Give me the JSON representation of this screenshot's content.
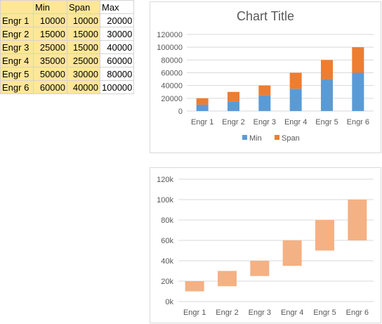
{
  "table": {
    "headers": [
      "",
      "Min",
      "Span",
      "Max"
    ],
    "rows": [
      {
        "label": "Engr 1",
        "min": "10000",
        "span": "10000",
        "max": "20000"
      },
      {
        "label": "Engr 2",
        "min": "15000",
        "span": "15000",
        "max": "30000"
      },
      {
        "label": "Engr 3",
        "min": "25000",
        "span": "15000",
        "max": "40000"
      },
      {
        "label": "Engr 4",
        "min": "35000",
        "span": "25000",
        "max": "60000"
      },
      {
        "label": "Engr 5",
        "min": "50000",
        "span": "30000",
        "max": "80000"
      },
      {
        "label": "Engr 6",
        "min": "60000",
        "span": "40000",
        "max": "100000"
      }
    ],
    "highlight_color": "#ffe699"
  },
  "chart_data": [
    {
      "type": "bar",
      "stacked": true,
      "title": "Chart Title",
      "categories": [
        "Engr 1",
        "Engr 2",
        "Engr 3",
        "Engr 4",
        "Engr 5",
        "Engr 6"
      ],
      "series": [
        {
          "name": "Min",
          "values": [
            10000,
            15000,
            25000,
            35000,
            50000,
            60000
          ],
          "color": "#5b9bd5"
        },
        {
          "name": "Span",
          "values": [
            10000,
            15000,
            15000,
            25000,
            30000,
            40000
          ],
          "color": "#ed7d31"
        }
      ],
      "ylim": [
        0,
        120000
      ],
      "yticks": [
        "0",
        "20000",
        "40000",
        "60000",
        "80000",
        "100000",
        "120000"
      ],
      "legend": "bottom",
      "grid": true
    },
    {
      "type": "bar",
      "stacked": true,
      "title": "",
      "categories": [
        "Engr 1",
        "Engr 2",
        "Engr 3",
        "Engr 4",
        "Engr 5",
        "Engr 6"
      ],
      "series": [
        {
          "values": [
            10000,
            15000,
            25000,
            35000,
            50000,
            60000
          ],
          "color": "none",
          "hidden": true
        },
        {
          "values": [
            10000,
            15000,
            15000,
            25000,
            30000,
            40000
          ],
          "color": "#f4b183"
        }
      ],
      "ylim": [
        0,
        120000
      ],
      "yticks": [
        "0k",
        "20k",
        "40k",
        "60k",
        "80k",
        "100k",
        "120k"
      ],
      "legend": "none",
      "grid": true
    }
  ]
}
